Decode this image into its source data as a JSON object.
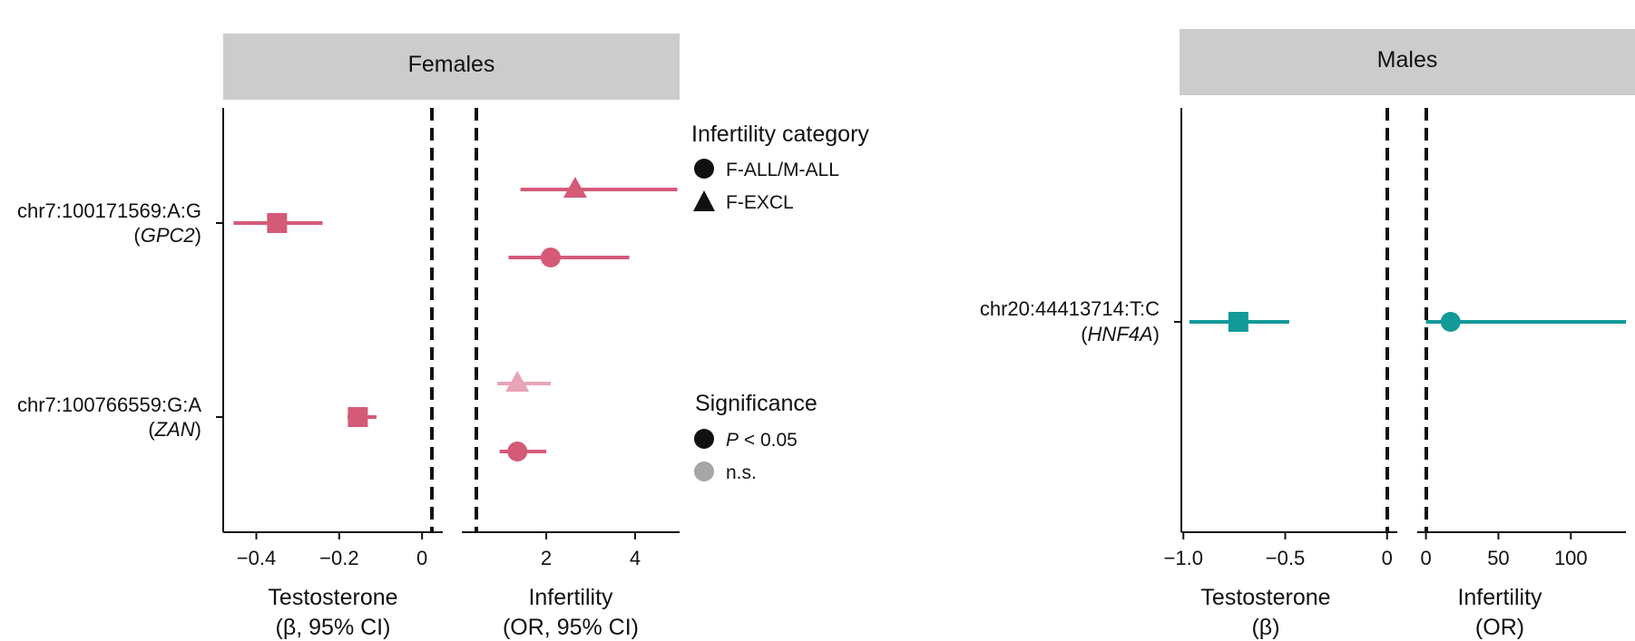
{
  "chart_data": [
    {
      "type": "forest",
      "panel": "Females",
      "facets": [
        {
          "name": "Testosterone",
          "xlabel": "Testosterone",
          "xlabel_sub": "(β, 95% CI)",
          "xlim": [
            -0.48,
            0.05
          ],
          "xticks": [
            -0.4,
            -0.2,
            0
          ],
          "xtick_labels": [
            "−0.4",
            "−0.2",
            "0"
          ],
          "reference": 0,
          "points": [
            {
              "variant": "chr7:100171569:A:G",
              "estimate": -0.35,
              "lower": -0.455,
              "upper": -0.24,
              "shape": "square",
              "significance": "P < 0.05"
            },
            {
              "variant": "chr7:100766559:G:A",
              "estimate": -0.155,
              "lower": -0.18,
              "upper": -0.11,
              "shape": "square",
              "significance": "P < 0.05"
            }
          ]
        },
        {
          "name": "Infertility",
          "xlabel": "Infertility",
          "xlabel_sub": "(OR, 95% CI)",
          "xlim": [
            0.1,
            5.0
          ],
          "xticks": [
            2,
            4
          ],
          "xtick_labels": [
            "2",
            "4"
          ],
          "reference": 1,
          "points": [
            {
              "variant": "chr7:100171569:A:G",
              "estimate": 2.65,
              "lower": 1.42,
              "upper": 4.95,
              "shape": "triangle",
              "category": "F-EXCL",
              "significance": "P < 0.05"
            },
            {
              "variant": "chr7:100171569:A:G",
              "estimate": 2.1,
              "lower": 1.15,
              "upper": 3.87,
              "shape": "circle",
              "category": "F-ALL/M-ALL",
              "significance": "P < 0.05"
            },
            {
              "variant": "chr7:100766559:G:A",
              "estimate": 1.35,
              "lower": 0.9,
              "upper": 2.1,
              "shape": "triangle",
              "category": "F-EXCL",
              "significance": "n.s."
            },
            {
              "variant": "chr7:100766559:G:A",
              "estimate": 1.35,
              "lower": 0.95,
              "upper": 2.0,
              "shape": "circle",
              "category": "F-ALL/M-ALL",
              "significance": "P < 0.05"
            }
          ]
        }
      ],
      "variants": [
        {
          "id": "chr7:100171569:A:G",
          "gene": "GPC2"
        },
        {
          "id": "chr7:100766559:G:A",
          "gene": "ZAN"
        }
      ],
      "color": "#d45a78",
      "faded_color": "#e9a4b5"
    },
    {
      "type": "forest",
      "panel": "Males",
      "facets": [
        {
          "name": "Testosterone",
          "xlabel": "Testosterone",
          "xlabel_sub": "(β)",
          "xlim": [
            -1.01,
            0.05
          ],
          "xticks": [
            -1.0,
            -0.5,
            0
          ],
          "xtick_labels": [
            "−1.0",
            "−0.5",
            "0"
          ],
          "reference": 0,
          "points": [
            {
              "variant": "chr20:44413714:T:C",
              "estimate": -0.73,
              "lower": -0.97,
              "upper": -0.48,
              "shape": "square",
              "significance": "P < 0.05"
            }
          ]
        },
        {
          "name": "Infertility",
          "xlabel": "Infertility",
          "xlabel_sub": "(OR)",
          "xlim": [
            -6,
            138
          ],
          "xticks": [
            0,
            50,
            100
          ],
          "xtick_labels": [
            "0",
            "50",
            "100"
          ],
          "reference": 0,
          "points": [
            {
              "variant": "chr20:44413714:T:C",
              "estimate": 17,
              "lower": 0,
              "upper": 138,
              "shape": "circle",
              "category": "F-ALL/M-ALL",
              "significance": "P < 0.05"
            }
          ]
        }
      ],
      "variants": [
        {
          "id": "chr20:44413714:T:C",
          "gene": "HNF4A"
        }
      ],
      "color": "#129a99"
    }
  ],
  "legend": {
    "category_title": "Infertility category",
    "categories": [
      {
        "label": "F-ALL/M-ALL",
        "shape": "circle"
      },
      {
        "label": "F-EXCL",
        "shape": "triangle"
      }
    ],
    "significance_title": "Significance",
    "significance": [
      {
        "label_italic": "P",
        "label_rest": " < 0.05",
        "color": "#111111"
      },
      {
        "label_italic": "",
        "label_rest": "n.s.",
        "color": "#a6a6a6"
      }
    ]
  }
}
